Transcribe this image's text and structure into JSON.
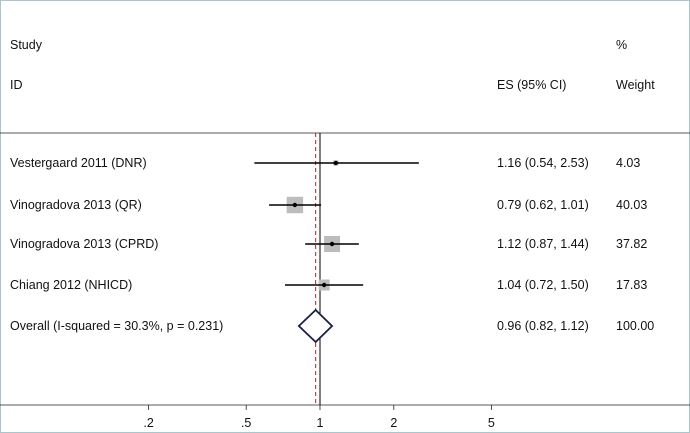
{
  "chart_data": {
    "type": "forest",
    "header": {
      "study_line1": "Study",
      "study_line2": "ID",
      "es_label": "ES (95% CI)",
      "weight_line1": "%",
      "weight_line2": "Weight"
    },
    "studies": [
      {
        "label": "Vestergaard 2011   (DNR)",
        "es": 1.16,
        "lo": 0.54,
        "hi": 2.53,
        "es_text": "1.16 (0.54, 2.53)",
        "weight": 4.03,
        "weight_text": "4.03"
      },
      {
        "label": "Vinogradova 2013   (QR)",
        "es": 0.79,
        "lo": 0.62,
        "hi": 1.01,
        "es_text": "0.79 (0.62, 1.01)",
        "weight": 40.03,
        "weight_text": "40.03"
      },
      {
        "label": "Vinogradova 2013   (CPRD)",
        "es": 1.12,
        "lo": 0.87,
        "hi": 1.44,
        "es_text": "1.12 (0.87, 1.44)",
        "weight": 37.82,
        "weight_text": "37.82"
      },
      {
        "label": "Chiang 2012   (NHICD)",
        "es": 1.04,
        "lo": 0.72,
        "hi": 1.5,
        "es_text": "1.04 (0.72, 1.50)",
        "weight": 17.83,
        "weight_text": "17.83"
      }
    ],
    "overall": {
      "label": "Overall  (I-squared = 30.3%, p = 0.231)",
      "es": 0.96,
      "lo": 0.82,
      "hi": 1.12,
      "es_text": "0.96 (0.82, 1.12)",
      "weight_text": "100.00"
    },
    "null_line": 1,
    "x_scale": "log",
    "x_ticks": [
      {
        "value": 0.2,
        "label": ".2"
      },
      {
        "value": 0.5,
        "label": ".5"
      },
      {
        "value": 1,
        "label": "1"
      },
      {
        "value": 2,
        "label": "2"
      },
      {
        "value": 5,
        "label": "5"
      }
    ],
    "colors": {
      "line": "#000000",
      "weight_box": "#bdbdbd",
      "diamond": "#1a1f4a",
      "overall_dash": "#b22222",
      "frame": "#a9c6cc"
    }
  }
}
